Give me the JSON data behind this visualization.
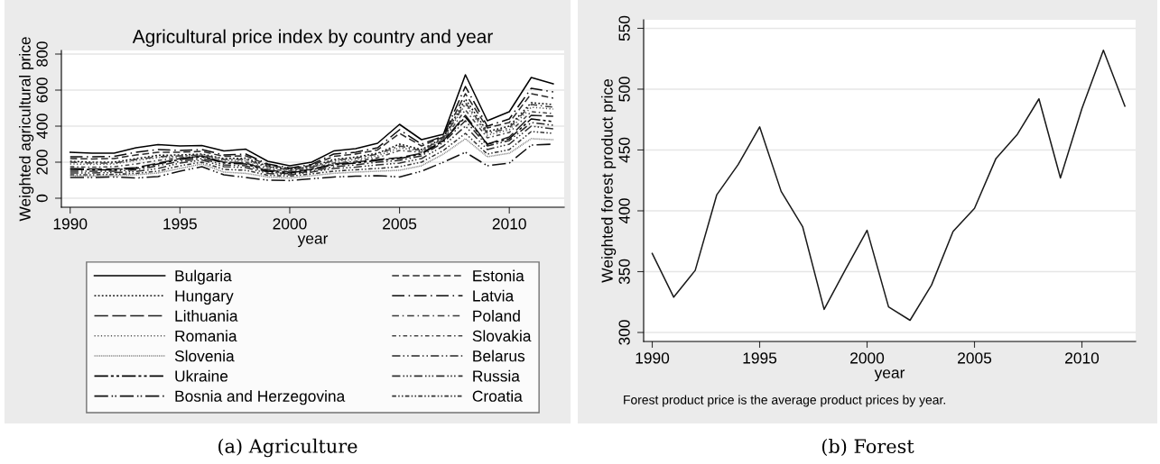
{
  "chart_data": [
    {
      "type": "line",
      "title": "Agricultural price index by country and year",
      "xlabel": "year",
      "ylabel": "Weighted agricultural price",
      "x": [
        1990,
        1991,
        1992,
        1993,
        1994,
        1995,
        1996,
        1997,
        1998,
        1999,
        2000,
        2001,
        2002,
        2003,
        2004,
        2005,
        2006,
        2007,
        2008,
        2009,
        2010,
        2011,
        2012
      ],
      "xlim": [
        1989.6,
        2012.5
      ],
      "xticks": [
        1990,
        1995,
        2000,
        2005,
        2010
      ],
      "ylim": [
        -50,
        820
      ],
      "yticks": [
        0,
        200,
        400,
        600,
        800
      ],
      "grid": "y",
      "legend": "bottom",
      "series": [
        {
          "name": "Bulgaria",
          "color": "#000000",
          "line_style": "solid",
          "values": [
            255,
            250,
            250,
            280,
            298,
            290,
            292,
            262,
            272,
            205,
            180,
            200,
            262,
            275,
            305,
            410,
            325,
            355,
            685,
            430,
            480,
            670,
            635
          ]
        },
        {
          "name": "Estonia",
          "color": "#2b2b2b",
          "line_style": "dashed",
          "values": [
            220,
            218,
            220,
            240,
            255,
            255,
            260,
            232,
            235,
            185,
            165,
            182,
            232,
            245,
            268,
            360,
            290,
            340,
            580,
            390,
            420,
            580,
            555
          ]
        },
        {
          "name": "Hungary",
          "color": "#141414",
          "line_style": "dotted",
          "values": [
            205,
            200,
            200,
            220,
            238,
            240,
            245,
            220,
            222,
            178,
            160,
            175,
            215,
            228,
            250,
            300,
            270,
            335,
            550,
            370,
            400,
            530,
            520
          ]
        },
        {
          "name": "Latvia",
          "color": "#0a0a0a",
          "line_style": "longdashdot",
          "values": [
            230,
            230,
            232,
            255,
            270,
            265,
            270,
            240,
            245,
            190,
            168,
            188,
            245,
            255,
            280,
            380,
            300,
            345,
            620,
            400,
            440,
            610,
            590
          ]
        },
        {
          "name": "Lithuania",
          "color": "#1f1f1f",
          "line_style": "longdash",
          "values": [
            165,
            162,
            162,
            170,
            195,
            220,
            235,
            200,
            195,
            155,
            145,
            160,
            190,
            200,
            215,
            225,
            250,
            320,
            460,
            300,
            340,
            460,
            455
          ]
        },
        {
          "name": "Poland",
          "color": "#3a3a3a",
          "line_style": "dashdot",
          "values": [
            200,
            195,
            195,
            215,
            230,
            235,
            240,
            215,
            215,
            175,
            158,
            172,
            210,
            222,
            245,
            290,
            265,
            332,
            530,
            360,
            390,
            520,
            505
          ]
        },
        {
          "name": "Romania",
          "color": "#555555",
          "line_style": "finedotted",
          "values": [
            190,
            188,
            190,
            210,
            225,
            232,
            238,
            210,
            210,
            170,
            155,
            170,
            205,
            215,
            235,
            280,
            260,
            330,
            520,
            350,
            380,
            505,
            495
          ]
        },
        {
          "name": "Slovakia",
          "color": "#444444",
          "line_style": "shortdashdot",
          "values": [
            175,
            172,
            175,
            190,
            210,
            225,
            230,
            200,
            200,
            162,
            150,
            165,
            195,
            205,
            225,
            265,
            255,
            325,
            490,
            335,
            365,
            480,
            470
          ]
        },
        {
          "name": "Slovenia",
          "color": "#777777",
          "line_style": "densedotted",
          "values": [
            125,
            122,
            125,
            130,
            140,
            165,
            190,
            145,
            138,
            118,
            112,
            125,
            138,
            145,
            150,
            155,
            180,
            245,
            330,
            230,
            250,
            330,
            325
          ]
        },
        {
          "name": "Belarus",
          "color": "#262626",
          "line_style": "dashdotdot",
          "values": [
            150,
            150,
            150,
            158,
            180,
            205,
            220,
            185,
            180,
            145,
            135,
            150,
            175,
            185,
            200,
            210,
            235,
            310,
            430,
            290,
            320,
            420,
            405
          ]
        },
        {
          "name": "Ukraine",
          "color": "#050505",
          "line_style": "longdashdashdash",
          "values": [
            160,
            158,
            158,
            165,
            190,
            215,
            230,
            195,
            190,
            150,
            140,
            158,
            185,
            195,
            210,
            220,
            245,
            318,
            450,
            300,
            330,
            440,
            425
          ]
        },
        {
          "name": "Russia",
          "color": "#303030",
          "line_style": "dashdotdotdot",
          "values": [
            140,
            140,
            142,
            148,
            165,
            195,
            212,
            175,
            170,
            138,
            130,
            145,
            165,
            172,
            185,
            195,
            220,
            290,
            400,
            270,
            300,
            400,
            385
          ]
        },
        {
          "name": "Bosnia and Herzegovina",
          "color": "#101010",
          "line_style": "longdashdotdot",
          "values": [
            115,
            115,
            118,
            112,
            120,
            150,
            175,
            130,
            115,
            100,
            98,
            108,
            118,
            122,
            125,
            118,
            150,
            200,
            255,
            180,
            195,
            295,
            300
          ]
        },
        {
          "name": "Croatia",
          "color": "#333333",
          "line_style": "shortdashdotdot",
          "values": [
            130,
            130,
            132,
            138,
            150,
            180,
            200,
            160,
            155,
            128,
            122,
            135,
            150,
            158,
            165,
            175,
            200,
            265,
            360,
            245,
            270,
            370,
            360
          ]
        }
      ],
      "annotations": [
        "(a) Agriculture"
      ]
    },
    {
      "type": "line",
      "xlabel": "year",
      "ylabel": "Weighted forest product price",
      "x": [
        1990,
        1991,
        1992,
        1993,
        1994,
        1995,
        1996,
        1997,
        1998,
        1999,
        2000,
        2001,
        2002,
        2003,
        2004,
        2005,
        2006,
        2007,
        2008,
        2009,
        2010,
        2011,
        2012
      ],
      "xlim": [
        1989.6,
        2012.5
      ],
      "xticks": [
        1990,
        1995,
        2000,
        2005,
        2010
      ],
      "ylim": [
        292.6,
        557
      ],
      "yticks": [
        300,
        350,
        400,
        450,
        500,
        550
      ],
      "grid": "y",
      "series": [
        {
          "color": "#1a1a1a",
          "line_style": "solid",
          "values": [
            365,
            329,
            351,
            413,
            438,
            469,
            416,
            387,
            319,
            352,
            384,
            321,
            310,
            339,
            383,
            402,
            443,
            463,
            492,
            427,
            484,
            532,
            486
          ]
        }
      ],
      "annotations": [
        "Forest product price is the average product prices by year.",
        "(b) Forest"
      ]
    }
  ]
}
